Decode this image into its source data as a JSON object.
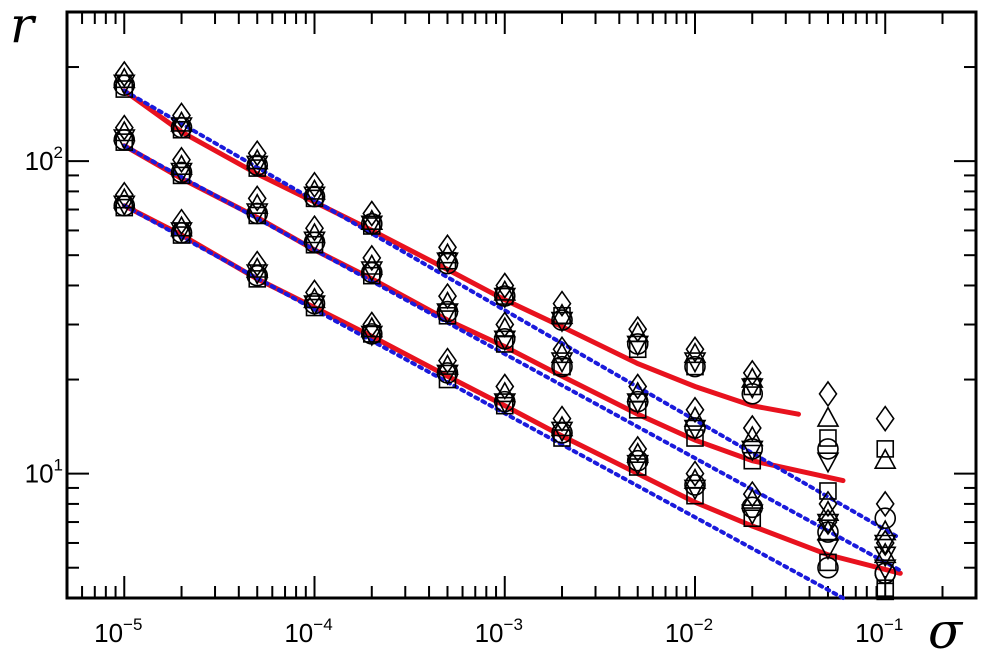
{
  "chart_data": {
    "type": "scatter",
    "title": "",
    "xlabel": "σ",
    "ylabel": "r",
    "xscale": "log",
    "yscale": "log",
    "xlim": [
      5e-06,
      0.3
    ],
    "ylim": [
      4,
      300
    ],
    "x_ticks": [
      {
        "base": "10",
        "exp": "−5"
      },
      {
        "base": "10",
        "exp": "−4"
      },
      {
        "base": "10",
        "exp": "−3"
      },
      {
        "base": "10",
        "exp": "−2"
      },
      {
        "base": "10",
        "exp": "−1"
      }
    ],
    "y_ticks": [
      {
        "base": "10",
        "exp": "1"
      },
      {
        "base": "10",
        "exp": "2"
      }
    ],
    "x_tick_values": [
      1e-05,
      0.0001,
      0.001,
      0.01,
      0.1
    ],
    "y_tick_values": [
      10,
      100
    ],
    "grid": false,
    "legend": "none",
    "colors": {
      "fit_solid": "#e8121e",
      "fit_dotted": "#1a1adc",
      "markers": "#000000"
    },
    "x": [
      1e-05,
      2e-05,
      5e-05,
      0.0001,
      0.0002,
      0.0005,
      0.001,
      0.002,
      0.005,
      0.01,
      0.02,
      0.05,
      0.1
    ],
    "marker_shapes": [
      "circle",
      "square",
      "triangle-up",
      "triangle-down",
      "diamond"
    ],
    "marker_groups": [
      {
        "group": "upper",
        "points": {
          "circle": [
            175,
            128,
            97,
            77,
            63,
            47,
            37,
            31,
            26,
            22,
            18,
            12,
            7.2
          ],
          "square": [
            170,
            126,
            95,
            76,
            62,
            48,
            37,
            32,
            25,
            22,
            19,
            13,
            12
          ],
          "triangle-up": [
            182,
            132,
            100,
            80,
            64,
            50,
            38,
            32,
            28,
            24,
            20,
            15,
            11
          ],
          "triangle-down": [
            178,
            130,
            98,
            78,
            63,
            48,
            37,
            31,
            26,
            23,
            19,
            11,
            6
          ],
          "diamond": [
            190,
            140,
            106,
            84,
            68,
            53,
            40,
            35,
            29,
            25,
            21,
            18,
            15
          ]
        }
      },
      {
        "group": "middle",
        "points": {
          "circle": [
            117,
            92,
            68,
            55,
            44,
            33,
            27,
            22,
            17,
            14,
            12,
            6.5,
            4.8
          ],
          "square": [
            115,
            90,
            67,
            54,
            43,
            32,
            26,
            22,
            16,
            13,
            11,
            8.8,
            4.3
          ],
          "triangle-up": [
            123,
            96,
            72,
            58,
            46,
            35,
            29,
            24,
            18,
            15,
            13,
            7.5,
            6.5
          ],
          "triangle-down": [
            119,
            93,
            69,
            56,
            45,
            33,
            27,
            23,
            17,
            14,
            12,
            7,
            5.5
          ],
          "diamond": [
            128,
            101,
            76,
            61,
            49,
            37,
            30,
            25,
            19,
            16,
            14,
            8,
            8
          ]
        }
      },
      {
        "group": "lower",
        "points": {
          "circle": [
            72,
            59,
            43,
            35,
            28,
            21,
            17,
            13.5,
            11,
            9.2,
            7.8,
            5,
            4.8
          ],
          "square": [
            71,
            58,
            42,
            34,
            28,
            20,
            16.5,
            13,
            10.5,
            8.5,
            7.2,
            5.2,
            4.2
          ],
          "triangle-up": [
            75,
            61,
            45,
            36,
            29,
            22,
            18,
            14,
            11.5,
            9.5,
            8.2,
            6.5,
            5.5
          ],
          "triangle-down": [
            73,
            60,
            44,
            35,
            28,
            21,
            17,
            13.8,
            10.8,
            9,
            7.5,
            5.8,
            5
          ],
          "diamond": [
            78,
            64,
            47,
            38,
            30,
            23,
            19,
            15,
            12,
            10,
            8.6,
            7,
            6
          ]
        }
      }
    ],
    "fit_curves": [
      {
        "group": "upper",
        "style": "solid-red",
        "x": [
          1e-05,
          2e-05,
          5e-05,
          0.0001,
          0.0002,
          0.0005,
          0.001,
          0.002,
          0.005,
          0.01,
          0.02,
          0.035
        ],
        "y": [
          168,
          124,
          91,
          74,
          60,
          45,
          36,
          29.5,
          22.5,
          19,
          16.5,
          15.5
        ]
      },
      {
        "group": "middle",
        "style": "solid-red",
        "x": [
          1e-05,
          2e-05,
          5e-05,
          0.0001,
          0.0002,
          0.0005,
          0.001,
          0.002,
          0.005,
          0.01,
          0.02,
          0.06
        ],
        "y": [
          112,
          88,
          66,
          52,
          42,
          31,
          25.5,
          20.5,
          15.5,
          12.8,
          11,
          9.5
        ]
      },
      {
        "group": "lower",
        "style": "solid-red",
        "x": [
          1e-05,
          2e-05,
          5e-05,
          0.0001,
          0.0002,
          0.0005,
          0.001,
          0.002,
          0.005,
          0.01,
          0.02,
          0.05,
          0.12
        ],
        "y": [
          72,
          58,
          42,
          34,
          27.5,
          20.5,
          16.5,
          13.2,
          10,
          8.1,
          6.8,
          5.5,
          4.8
        ]
      },
      {
        "group": "upper",
        "style": "dotted-blue",
        "x": [
          1e-05,
          0.12
        ],
        "y": [
          168,
          6.2
        ]
      },
      {
        "group": "middle",
        "style": "dotted-blue",
        "x": [
          1e-05,
          0.12
        ],
        "y": [
          112,
          4.9
        ]
      },
      {
        "group": "lower",
        "style": "dotted-blue",
        "x": [
          1e-05,
          0.06
        ],
        "y": [
          72,
          4
        ]
      }
    ]
  }
}
